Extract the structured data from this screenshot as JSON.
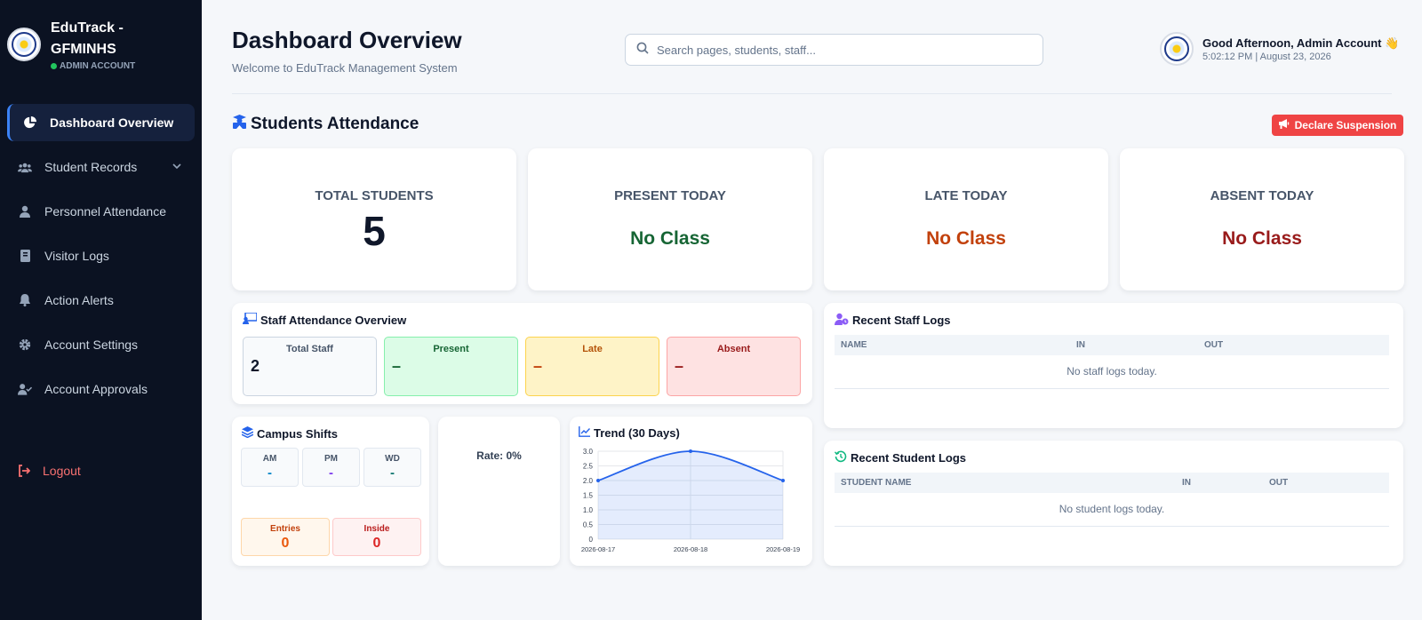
{
  "app": {
    "brand_title": "EduTrack - GFMINHS",
    "brand_sub": "ADMIN ACCOUNT"
  },
  "sidebar": {
    "items": [
      {
        "label": "Dashboard Overview"
      },
      {
        "label": "Student Records"
      },
      {
        "label": "Personnel Attendance"
      },
      {
        "label": "Visitor Logs"
      },
      {
        "label": "Action Alerts"
      },
      {
        "label": "Account Settings"
      },
      {
        "label": "Account Approvals"
      }
    ],
    "logout": "Logout"
  },
  "header": {
    "title": "Dashboard Overview",
    "subtitle": "Welcome to EduTrack Management System",
    "search_placeholder": "Search pages, students, staff...",
    "greeting": "Good Afternoon, Admin Account 👋",
    "datetime": "5:02:12 PM | August 23, 2026"
  },
  "students": {
    "section_title": "Students Attendance",
    "suspend_button": "Declare Suspension",
    "cards": [
      {
        "label": "TOTAL STUDENTS",
        "value": "5"
      },
      {
        "label": "PRESENT TODAY",
        "value": "No Class"
      },
      {
        "label": "LATE TODAY",
        "value": "No Class"
      },
      {
        "label": "ABSENT TODAY",
        "value": "No Class"
      }
    ]
  },
  "staff": {
    "title": "Staff Attendance Overview",
    "total_label": "Total Staff",
    "total_value": "2",
    "present_label": "Present",
    "present_value": "–",
    "late_label": "Late",
    "late_value": "–",
    "absent_label": "Absent",
    "absent_value": "–"
  },
  "shifts": {
    "title": "Campus Shifts",
    "am_label": "AM",
    "am_value": "-",
    "pm_label": "PM",
    "pm_value": "-",
    "wd_label": "WD",
    "wd_value": "-",
    "entries_label": "Entries",
    "entries_value": "0",
    "inside_label": "Inside",
    "inside_value": "0"
  },
  "rate": {
    "text": "Rate: 0%"
  },
  "trend": {
    "title": "Trend (30 Days)"
  },
  "chart_data": {
    "type": "area",
    "x": [
      "2026-08-17",
      "2026-08-18",
      "2026-08-19"
    ],
    "series": [
      {
        "values": [
          2,
          3,
          2
        ]
      }
    ],
    "ylim": [
      0,
      3
    ],
    "yticks": [
      "0",
      "0.5",
      "1.0",
      "1.5",
      "2.0",
      "2.5",
      "3.0"
    ],
    "grid": true,
    "color": "#2563eb"
  },
  "staff_logs": {
    "title": "Recent Staff Logs",
    "col_name": "NAME",
    "col_in": "IN",
    "col_out": "OUT",
    "empty": "No staff logs today."
  },
  "student_logs": {
    "title": "Recent Student Logs",
    "col_name": "STUDENT NAME",
    "col_in": "IN",
    "col_out": "OUT",
    "empty": "No student logs today."
  },
  "colors": {
    "accent": "#3b82f6",
    "present": "#166534",
    "late": "#c2410c",
    "absent": "#991b1b",
    "danger": "#ef4444"
  }
}
